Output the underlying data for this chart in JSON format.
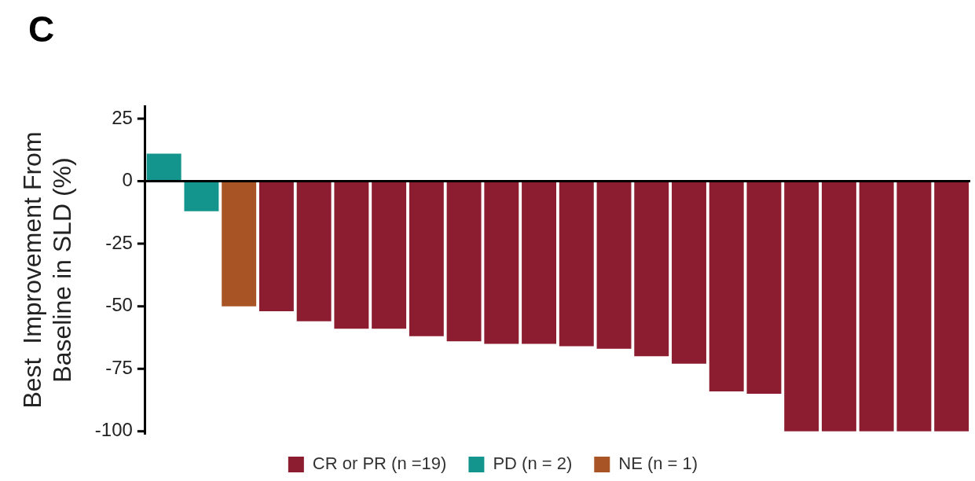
{
  "chart_data": {
    "type": "bar",
    "ylabel": "Best  Improvement From Baseline in SLD (%)",
    "annotations": [
      "C"
    ],
    "categories": [
      null,
      null,
      null,
      null,
      null,
      null,
      null,
      null,
      null,
      null,
      null,
      null,
      null,
      null,
      null,
      null,
      null,
      null,
      null,
      null,
      null,
      null
    ],
    "series": [
      {
        "name": "CR or PR (n =19)",
        "color": "#8c1c2f",
        "values": [
          null,
          null,
          null,
          -52,
          -56,
          -59,
          -59,
          -62,
          -64,
          -65,
          -65,
          -66,
          -67,
          -70,
          -73,
          -84,
          -85,
          -100,
          -100,
          -100,
          -100,
          -100
        ]
      },
      {
        "name": "PD (n = 2)",
        "color": "#13958e",
        "values": [
          11,
          -12,
          null,
          null,
          null,
          null,
          null,
          null,
          null,
          null,
          null,
          null,
          null,
          null,
          null,
          null,
          null,
          null,
          null,
          null,
          null,
          null
        ]
      },
      {
        "name": "NE (n = 1)",
        "color": "#a85424",
        "values": [
          null,
          null,
          -50,
          null,
          null,
          null,
          null,
          null,
          null,
          null,
          null,
          null,
          null,
          null,
          null,
          null,
          null,
          null,
          null,
          null,
          null,
          null
        ]
      }
    ],
    "ylim": [
      -101,
      30
    ],
    "yticks": [
      25,
      0,
      -25,
      -50,
      -75,
      -100
    ],
    "ref_lines": [
      {
        "axis": "y",
        "value": 0,
        "color": "#000000"
      }
    ],
    "grid": false,
    "legend": "bottom"
  }
}
